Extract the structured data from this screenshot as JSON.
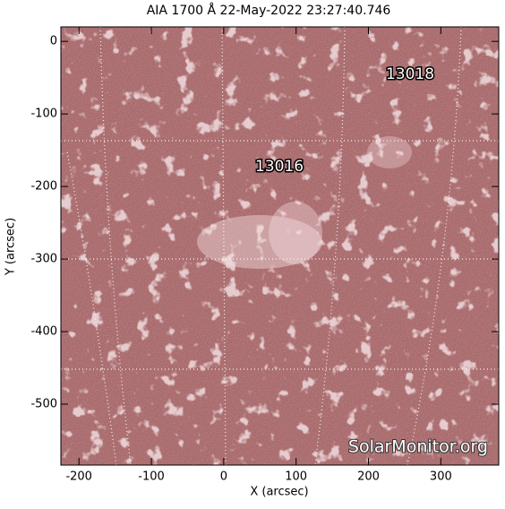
{
  "chart_data": {
    "type": "image",
    "title": "AIA 1700 Å 22-May-2022 23:27:40.746",
    "x_label": "X (arcsec)",
    "y_label": "Y (arcsec)",
    "xlim": [
      -225,
      380
    ],
    "ylim": [
      -584,
      20
    ],
    "xticks": [
      -200,
      -100,
      0,
      100,
      200,
      300
    ],
    "yticks": [
      0,
      -100,
      -200,
      -300,
      -400,
      -500
    ],
    "annotations": [
      "13018",
      "13016"
    ],
    "watermark": "SolarMonitor.org"
  }
}
